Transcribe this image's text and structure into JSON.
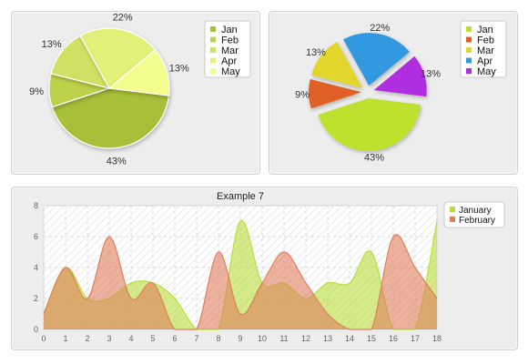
{
  "chart_data": [
    {
      "type": "pie",
      "name": "pie-basic",
      "categories": [
        "Jan",
        "Feb",
        "Mar",
        "Apr",
        "May"
      ],
      "values": [
        43,
        9,
        13,
        22,
        13
      ],
      "labels": [
        "43%",
        "9%",
        "13%",
        "22%",
        "13%"
      ],
      "colors": [
        "#a8bf37",
        "#bcd04a",
        "#cfe064",
        "#e2f07a",
        "#f4fc8e"
      ],
      "legend": "right"
    },
    {
      "type": "pie",
      "name": "pie-exploded",
      "categories": [
        "Jan",
        "Feb",
        "Mar",
        "Apr",
        "May"
      ],
      "values": [
        43,
        9,
        13,
        22,
        13
      ],
      "labels": [
        "43%",
        "9%",
        "13%",
        "22%",
        "13%"
      ],
      "colors": [
        "#bde22e",
        "#e06128",
        "#e3d62c",
        "#3399e0",
        "#b02ee0"
      ],
      "legend": "right"
    },
    {
      "type": "area",
      "name": "area-chart",
      "title": "Example 7",
      "x": [
        0,
        1,
        2,
        3,
        4,
        5,
        6,
        7,
        8,
        9,
        10,
        11,
        12,
        13,
        14,
        15,
        16,
        17,
        18
      ],
      "xticks": [
        "0",
        "1",
        "2",
        "3",
        "4",
        "5",
        "6",
        "7",
        "8",
        "9",
        "10",
        "11",
        "12",
        "13",
        "14",
        "15",
        "16",
        "17",
        "18"
      ],
      "yticks": [
        "0",
        "2",
        "4",
        "6",
        "8"
      ],
      "ylim": [
        0,
        8
      ],
      "xlim": [
        0,
        18
      ],
      "grid": true,
      "legend": "right",
      "series": [
        {
          "name": "January",
          "color": "#b9de3c",
          "values": [
            1,
            4,
            2,
            2,
            3,
            3,
            2,
            0,
            0,
            7,
            3,
            3,
            2,
            3,
            3,
            5,
            0,
            0,
            7
          ]
        },
        {
          "name": "February",
          "color": "#e07f5b",
          "values": [
            1,
            4,
            2,
            6,
            2,
            3,
            0,
            0,
            5,
            1,
            3,
            5,
            3,
            1,
            0,
            0,
            6,
            4,
            2
          ]
        }
      ]
    }
  ]
}
